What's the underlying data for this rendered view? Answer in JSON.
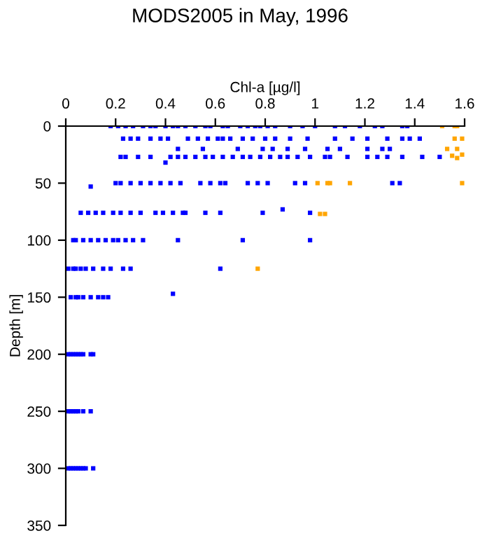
{
  "chart_data": {
    "type": "scatter",
    "title": "MODS2005 in May, 1996",
    "xlabel": "Chl-a [µg/l]",
    "ylabel": "Depth [m]",
    "xlim": [
      0,
      1.6
    ],
    "xticks": [
      0,
      0.2,
      0.4,
      0.6,
      0.8,
      1,
      1.2,
      1.4,
      1.6
    ],
    "ylim": [
      350,
      0
    ],
    "yticks": [
      0,
      50,
      100,
      150,
      200,
      250,
      300,
      350
    ],
    "grid": false,
    "legend": false,
    "marker": "square",
    "series": [
      {
        "color": "#0000ff",
        "x": [
          0.18,
          0.21,
          0.24,
          0.27,
          0.31,
          0.34,
          0.36,
          0.4,
          0.43,
          0.45,
          0.48,
          0.52,
          0.56,
          0.58,
          0.63,
          0.65,
          0.7,
          0.73,
          0.76,
          0.78,
          0.81,
          0.84,
          0.9,
          0.95,
          1.0,
          1.08,
          1.12,
          1.18,
          1.24,
          1.27,
          1.35,
          1.37,
          0.23,
          0.26,
          0.29,
          0.34,
          0.38,
          0.41,
          0.49,
          0.53,
          0.57,
          0.61,
          0.63,
          0.66,
          0.71,
          0.75,
          0.8,
          0.84,
          0.9,
          0.97,
          1.08,
          1.15,
          1.21,
          1.29,
          1.35,
          1.38,
          1.42,
          0.45,
          0.55,
          0.69,
          0.79,
          0.83,
          0.89,
          0.96,
          1.05,
          1.1,
          1.21,
          1.27,
          1.3,
          0.22,
          0.24,
          0.29,
          0.34,
          0.42,
          0.45,
          0.48,
          0.52,
          0.56,
          0.59,
          0.63,
          0.67,
          0.71,
          0.74,
          0.78,
          0.82,
          0.86,
          0.89,
          0.93,
          0.98,
          1.04,
          1.06,
          1.13,
          1.21,
          1.25,
          1.29,
          1.35,
          1.43,
          1.5,
          0.4,
          0.1,
          0.2,
          0.22,
          0.26,
          0.3,
          0.34,
          0.38,
          0.42,
          0.46,
          0.54,
          0.58,
          0.62,
          0.64,
          0.73,
          0.77,
          0.81,
          0.92,
          0.96,
          1.31,
          1.34,
          0.06,
          0.09,
          0.12,
          0.15,
          0.19,
          0.22,
          0.26,
          0.3,
          0.36,
          0.39,
          0.43,
          0.47,
          0.48,
          0.56,
          0.62,
          0.79,
          0.87,
          0.98,
          0.03,
          0.04,
          0.07,
          0.1,
          0.13,
          0.16,
          0.19,
          0.21,
          0.24,
          0.27,
          0.31,
          0.45,
          0.71,
          0.98,
          0.01,
          0.03,
          0.04,
          0.06,
          0.08,
          0.11,
          0.15,
          0.18,
          0.23,
          0.26,
          0.62,
          0.02,
          0.04,
          0.05,
          0.07,
          0.1,
          0.13,
          0.15,
          0.17,
          0.43,
          0.01,
          0.02,
          0.03,
          0.04,
          0.05,
          0.06,
          0.07,
          0.1,
          0.11,
          0.01,
          0.02,
          0.03,
          0.04,
          0.05,
          0.07,
          0.1,
          0.01,
          0.02,
          0.03,
          0.04,
          0.05,
          0.06,
          0.07,
          0.08,
          0.11
        ],
        "values": [
          0,
          0,
          0,
          0,
          0,
          0,
          0,
          0,
          0,
          0,
          0,
          0,
          0,
          0,
          0,
          0,
          0,
          0,
          0,
          0,
          0,
          0,
          0,
          0,
          0,
          0,
          0,
          0,
          0,
          0,
          0,
          0,
          11,
          11,
          11,
          11,
          11,
          11,
          11,
          11,
          11,
          11,
          11,
          11,
          11,
          11,
          11,
          11,
          11,
          11,
          11,
          11,
          11,
          11,
          11,
          11,
          11,
          20,
          20,
          20,
          20,
          20,
          20,
          20,
          20,
          20,
          20,
          20,
          20,
          27,
          27,
          27,
          27,
          27,
          27,
          27,
          27,
          27,
          27,
          27,
          27,
          27,
          27,
          27,
          27,
          27,
          27,
          27,
          27,
          27,
          27,
          27,
          27,
          27,
          27,
          27,
          27,
          27,
          32,
          53,
          50,
          50,
          50,
          50,
          50,
          50,
          50,
          50,
          50,
          50,
          50,
          50,
          50,
          50,
          50,
          50,
          50,
          50,
          50,
          76,
          76,
          76,
          76,
          76,
          76,
          76,
          76,
          76,
          76,
          76,
          76,
          76,
          76,
          76,
          76,
          73,
          76,
          100,
          100,
          100,
          100,
          100,
          100,
          100,
          100,
          100,
          100,
          100,
          100,
          100,
          100,
          125,
          125,
          125,
          125,
          125,
          125,
          125,
          125,
          125,
          125,
          125,
          150,
          150,
          150,
          150,
          150,
          150,
          150,
          150,
          147,
          200,
          200,
          200,
          200,
          200,
          200,
          200,
          200,
          200,
          250,
          250,
          250,
          250,
          250,
          250,
          250,
          300,
          300,
          300,
          300,
          300,
          300,
          300,
          300,
          300
        ]
      },
      {
        "color": "#ffa500",
        "x": [
          1.51,
          1.56,
          1.57,
          1.56,
          1.59,
          1.53,
          1.57,
          1.55,
          1.57,
          1.59,
          1.01,
          1.05,
          1.06,
          1.14,
          1.59,
          1.02,
          1.04,
          0.77
        ],
        "values": [
          0,
          0,
          0,
          11,
          11,
          20,
          20,
          26,
          28,
          25,
          50,
          50,
          50,
          50,
          50,
          77,
          77,
          125
        ]
      }
    ]
  }
}
